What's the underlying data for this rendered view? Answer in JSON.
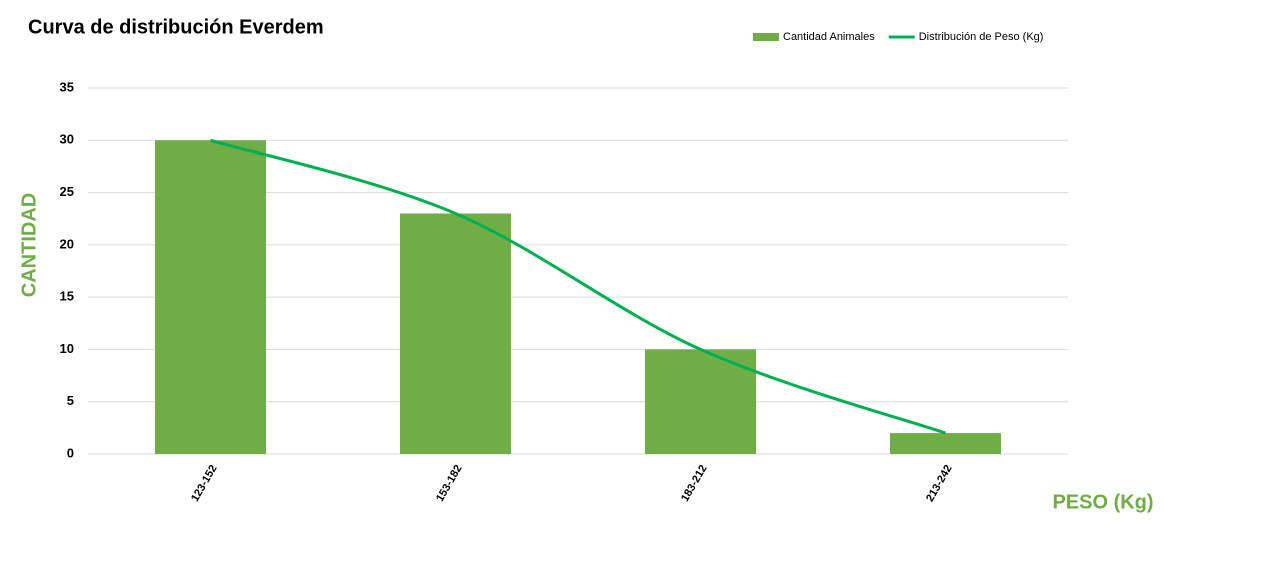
{
  "chart_data": {
    "type": "bar",
    "title": "Curva de distribución Everdem",
    "x_label": "PESO (Kg)",
    "y_label": "CANTIDAD",
    "categories": [
      "123-152",
      "153-182",
      "183-212",
      "213-242"
    ],
    "series": [
      {
        "name": "Cantidad Animales",
        "type": "bar",
        "color": "#70ad47",
        "values": [
          30,
          23,
          10,
          2
        ]
      },
      {
        "name": "Distribución de Peso (Kg)",
        "type": "line",
        "color": "#00b050",
        "values": [
          30,
          23,
          10,
          2
        ]
      }
    ],
    "ylim": [
      0,
      35
    ],
    "yticks": [
      0,
      5,
      10,
      15,
      20,
      25,
      30,
      35
    ],
    "grid": true,
    "legend": "top-right"
  }
}
